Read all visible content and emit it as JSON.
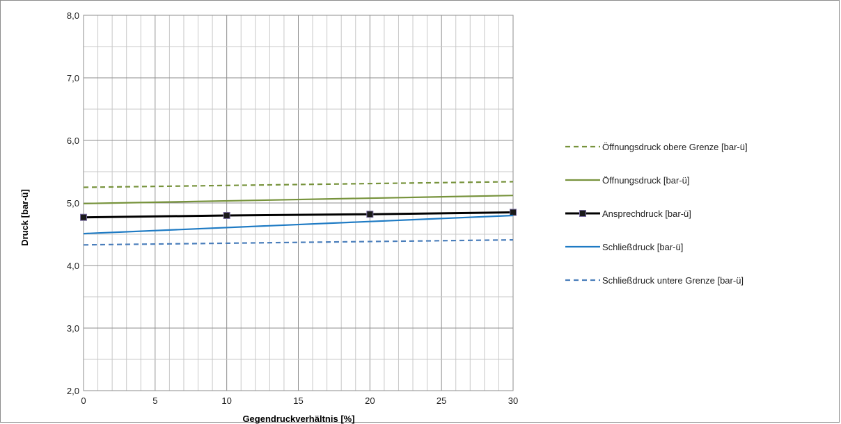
{
  "chart_data": {
    "type": "line",
    "title": "",
    "xlabel": "Gegendruckverhältnis [%]",
    "ylabel": "Druck [bar-ü]",
    "xlim": [
      0,
      30
    ],
    "ylim": [
      2.0,
      8.0
    ],
    "x_ticks": [
      "0",
      "5",
      "10",
      "15",
      "20",
      "25",
      "30"
    ],
    "y_ticks": [
      "2,0",
      "3,0",
      "4,0",
      "5,0",
      "6,0",
      "7,0",
      "8,0"
    ],
    "grid": true,
    "legend_position": "right",
    "series": [
      {
        "name": "Öffnungsdruck obere Grenze [bar-ü]",
        "x": [
          0,
          30
        ],
        "values": [
          5.25,
          5.34
        ],
        "color": "#77933c",
        "style": "dashed",
        "markers": false
      },
      {
        "name": "Öffnungsdruck [bar-ü]",
        "x": [
          0,
          30
        ],
        "values": [
          4.99,
          5.12
        ],
        "color": "#77933c",
        "style": "solid",
        "markers": false
      },
      {
        "name": "Ansprechdruck [bar-ü]",
        "x": [
          0,
          10,
          20,
          30
        ],
        "values": [
          4.77,
          4.8,
          4.82,
          4.85
        ],
        "color": "#000000",
        "style": "solid",
        "markers": true
      },
      {
        "name": "Schließdruck [bar-ü]",
        "x": [
          0,
          30
        ],
        "values": [
          4.51,
          4.8
        ],
        "color": "#1f7bc4",
        "style": "solid",
        "markers": false
      },
      {
        "name": "Schließdruck untere Grenze [bar-ü]",
        "x": [
          0,
          30
        ],
        "values": [
          4.33,
          4.41
        ],
        "color": "#4a7ebb",
        "style": "dashed",
        "markers": false
      }
    ]
  }
}
